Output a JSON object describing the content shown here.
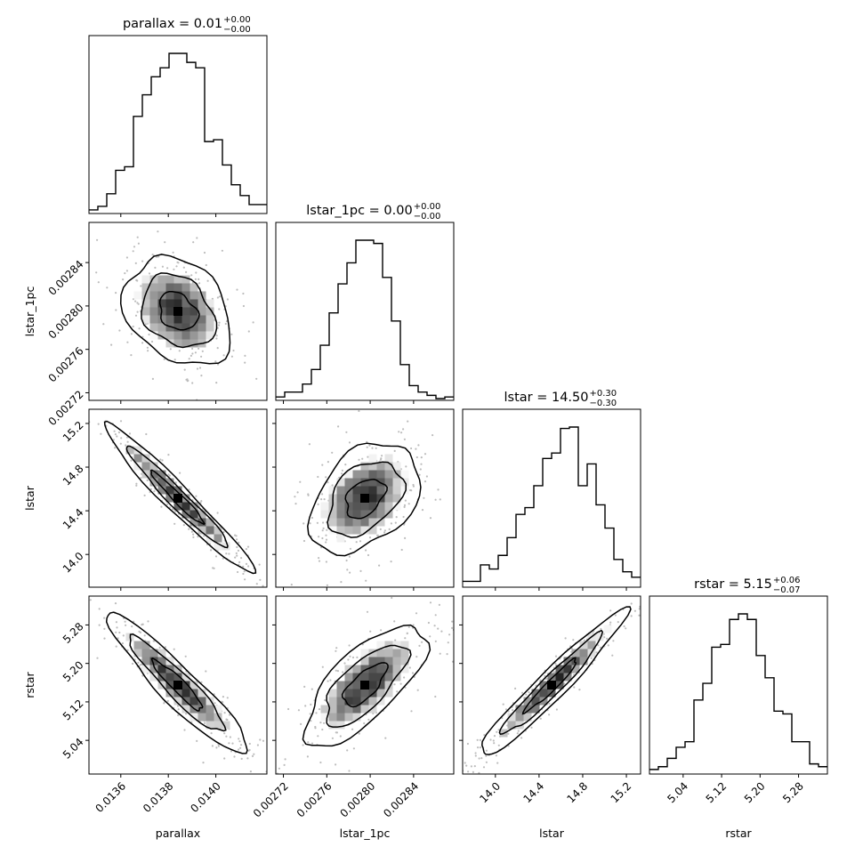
{
  "chart_data": {
    "type": "corner",
    "parameters": [
      "parallax",
      "lstar_1pc",
      "lstar",
      "rstar"
    ],
    "titles": [
      {
        "base": "parallax = 0.01",
        "sup": "+0.00",
        "sub": "−0.00"
      },
      {
        "base": "lstar_1pc = 0.00",
        "sup": "+0.00",
        "sub": "−0.00"
      },
      {
        "base": "lstar = 14.50",
        "sup": "+0.30",
        "sub": "−0.30"
      },
      {
        "base": "rstar = 5.15",
        "sup": "+0.06",
        "sub": "−0.07"
      }
    ],
    "axis_labels": [
      "parallax",
      "lstar_1pc",
      "lstar",
      "rstar"
    ],
    "ranges": [
      [
        0.013466,
        0.014215
      ],
      [
        0.002713,
        0.002877
      ],
      [
        13.7,
        15.33
      ],
      [
        4.97,
        5.34
      ]
    ],
    "ticks": [
      {
        "values": [
          0.0136,
          0.0138,
          0.014
        ],
        "labels": [
          "0.0136",
          "0.0138",
          "0.0140"
        ]
      },
      {
        "values": [
          0.00272,
          0.00276,
          0.0028,
          0.00284
        ],
        "labels": [
          "0.00272",
          "0.00276",
          "0.00280",
          "0.00284"
        ]
      },
      {
        "values": [
          14.0,
          14.4,
          14.8,
          15.2
        ],
        "labels": [
          "14.0",
          "14.4",
          "14.8",
          "15.2"
        ]
      },
      {
        "values": [
          5.04,
          5.12,
          5.2,
          5.28
        ],
        "labels": [
          "5.04",
          "5.12",
          "5.20",
          "5.28"
        ]
      }
    ],
    "histograms": [
      [
        1,
        3,
        10,
        23,
        25,
        53,
        65,
        75,
        80,
        88,
        88,
        83,
        80,
        39,
        40,
        26,
        15,
        9,
        4,
        4
      ],
      [
        1,
        4,
        4,
        9,
        18,
        33,
        53,
        71,
        84,
        98,
        98,
        96,
        75,
        48,
        21,
        8,
        4,
        2,
        0,
        1
      ],
      [
        3,
        3,
        15,
        12,
        22,
        35,
        52,
        57,
        73,
        93,
        97,
        115,
        116,
        73,
        89,
        59,
        42,
        19,
        10,
        6
      ],
      [
        1,
        2,
        5,
        9,
        11,
        26,
        32,
        45,
        46,
        55,
        57,
        55,
        42,
        34,
        22,
        21,
        11,
        11,
        3,
        2
      ]
    ],
    "correlations": {
      "1-0": -0.15,
      "2-0": -0.95,
      "2-1": 0.22,
      "3-0": -0.82,
      "3-1": 0.48,
      "3-2": 0.92
    }
  }
}
